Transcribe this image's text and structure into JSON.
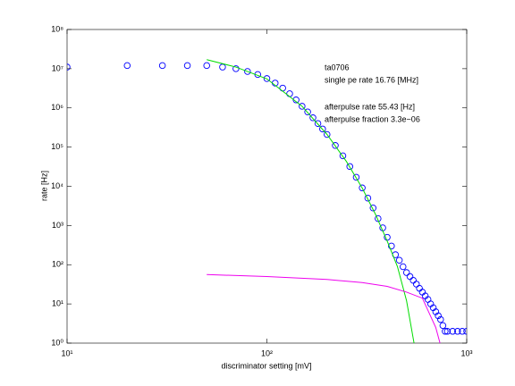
{
  "chart_data": {
    "type": "line",
    "xlabel": "discriminator setting [mV]",
    "ylabel": "rate [Hz]",
    "xscale": "log",
    "yscale": "log",
    "xlim": [
      10,
      1000
    ],
    "ylim": [
      1,
      100000000
    ],
    "xticks": [
      {
        "value": 10,
        "label": "10¹"
      },
      {
        "value": 100,
        "label": "10²"
      },
      {
        "value": 1000,
        "label": "10³"
      }
    ],
    "yticks": [
      {
        "value": 1,
        "label": "10⁰"
      },
      {
        "value": 10,
        "label": "10¹"
      },
      {
        "value": 100,
        "label": "10²"
      },
      {
        "value": 1000,
        "label": "10³"
      },
      {
        "value": 10000,
        "label": "10⁴"
      },
      {
        "value": 100000,
        "label": "10⁵"
      },
      {
        "value": 1000000,
        "label": "10⁶"
      },
      {
        "value": 10000000,
        "label": "10⁷"
      },
      {
        "value": 100000000,
        "label": "10⁸"
      }
    ],
    "annotations": [
      "ta0706",
      "single pe rate 16.76 [MHz]",
      "afterpulse rate 55.43 [Hz]",
      "afterpulse fraction 3.3e−06"
    ],
    "series": [
      {
        "color": "#0000ff",
        "marker": "circle",
        "x": [
          10,
          20,
          30,
          40,
          50,
          60,
          70,
          80,
          90,
          100,
          110,
          120,
          130,
          140,
          150,
          160,
          170,
          180,
          190,
          200,
          220,
          240,
          260,
          280,
          300,
          320,
          340,
          360,
          380,
          400,
          420,
          440,
          460,
          480,
          500,
          520,
          540,
          560,
          580,
          600,
          620,
          640,
          660,
          680,
          700,
          720,
          740,
          760,
          780,
          800,
          850,
          900,
          950,
          1000
        ],
        "values": [
          11000000,
          12000000,
          12000000,
          12000000,
          12000000,
          11000000,
          10000000,
          8500000,
          7100000,
          5600000,
          4300000,
          3200000,
          2300000,
          1600000,
          1100000,
          790000,
          560000,
          400000,
          290000,
          210000,
          110000,
          60000,
          32000,
          17000,
          9100,
          5000,
          2800,
          1500,
          870,
          500,
          300,
          180,
          130,
          89,
          63,
          50,
          40,
          32,
          25,
          20,
          16,
          13,
          10,
          8,
          6.3,
          5,
          4,
          2.8,
          2,
          2,
          2,
          2,
          2,
          2
        ]
      },
      {
        "color": "#00dd00",
        "marker": "none",
        "x": [
          50,
          70,
          100,
          150,
          200,
          250,
          300,
          350,
          400,
          450,
          500,
          545,
          600
        ],
        "values": [
          17000000,
          11000000,
          5500000,
          1100000,
          210000,
          43000,
          9000,
          1900,
          400,
          90,
          12,
          1,
          0.05
        ]
      },
      {
        "color": "#ee00ee",
        "marker": "none",
        "x": [
          50,
          100,
          200,
          300,
          400,
          500,
          600,
          700,
          735,
          800
        ],
        "values": [
          56,
          50,
          42,
          35,
          28,
          20,
          14,
          2.5,
          1,
          0.2
        ]
      }
    ]
  }
}
